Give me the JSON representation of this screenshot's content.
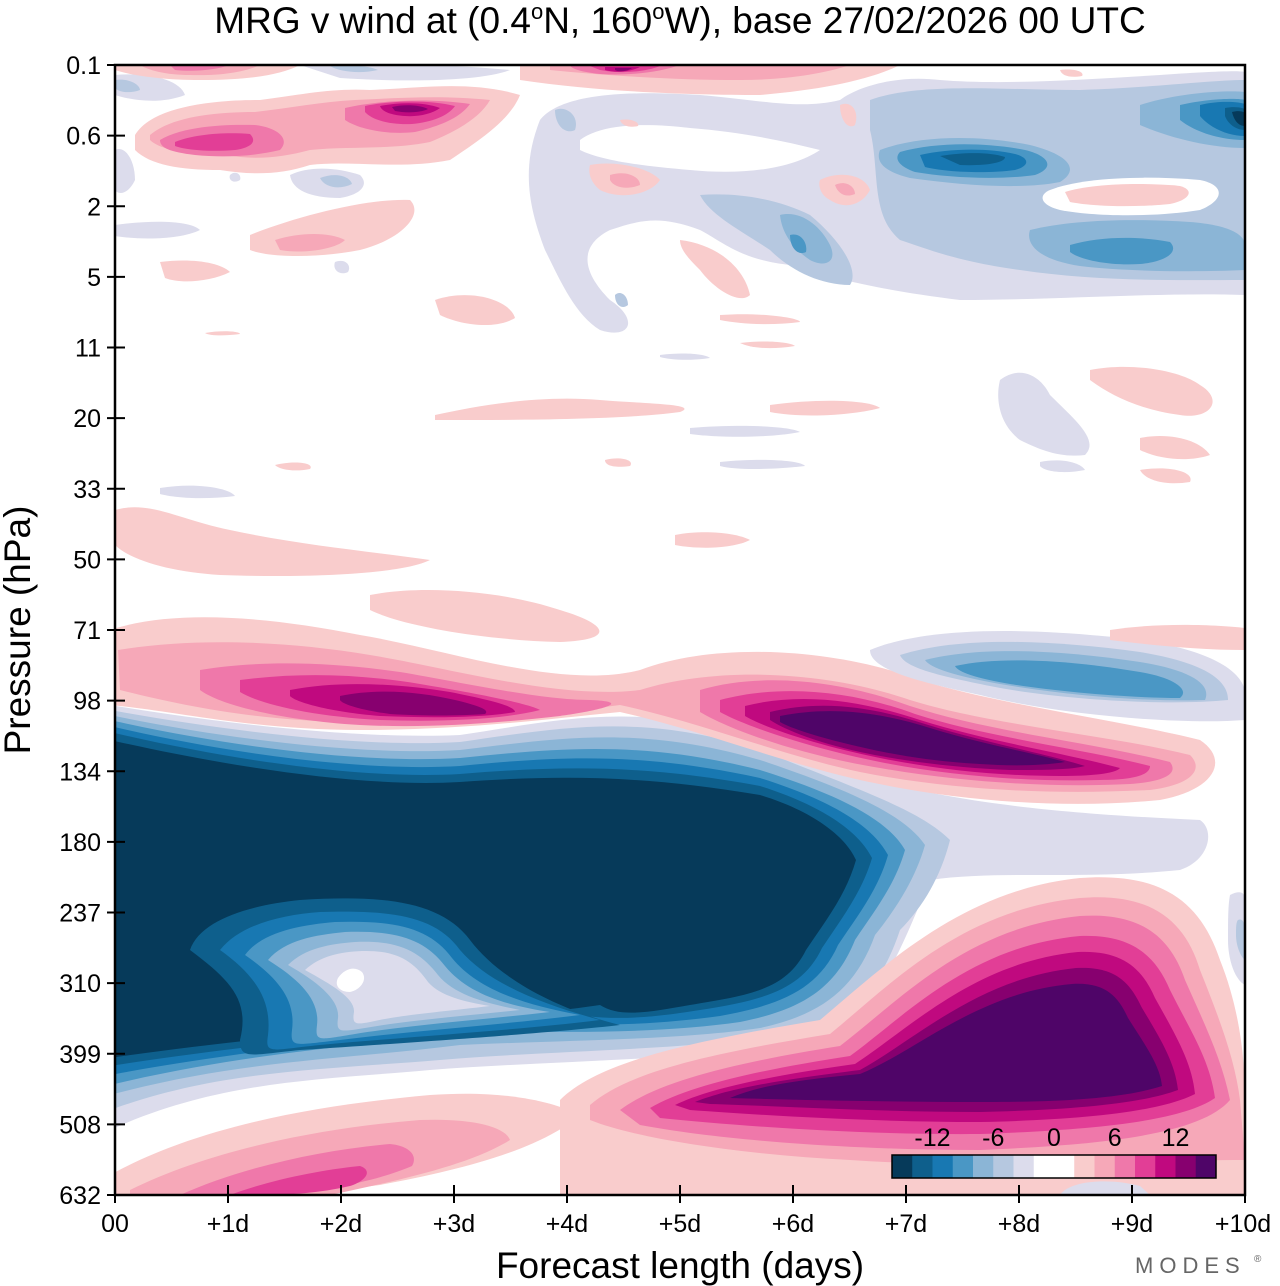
{
  "chart_data": {
    "type": "heatmap",
    "title": "MRG v wind at (0.4°N, 160°W),  base 27/02/2026  00 UTC",
    "title_parts": {
      "prefix": "MRG v wind at (0.4",
      "deg": "o",
      "mid": "N, 160",
      "suffix": "W),  base 27/02/2026  00 UTC"
    },
    "xlabel": "Forecast length (days)",
    "ylabel": "Pressure (hPa)",
    "x_tick_labels": [
      "00",
      "+1d",
      "+2d",
      "+3d",
      "+4d",
      "+5d",
      "+6d",
      "+7d",
      "+8d",
      "+9d",
      "+10d"
    ],
    "xlim_days": [
      0,
      10
    ],
    "y_tick_labels": [
      "0.1",
      "0.6",
      "2",
      "5",
      "11",
      "20",
      "33",
      "50",
      "71",
      "98",
      "134",
      "180",
      "237",
      "310",
      "399",
      "508",
      "632"
    ],
    "y_levels_hpa": [
      0.1,
      0.6,
      2,
      5,
      11,
      20,
      33,
      50,
      71,
      98,
      134,
      180,
      237,
      310,
      399,
      508,
      632
    ],
    "colorbar": {
      "tick_labels": [
        "-12",
        "-6",
        "0",
        "6",
        "12"
      ],
      "tick_values": [
        -12,
        -6,
        0,
        6,
        12
      ],
      "range": [
        -16,
        16
      ],
      "colors": [
        "#063a5a",
        "#0e5f8c",
        "#1878b2",
        "#4a97c5",
        "#8bb5d6",
        "#b6c8e0",
        "#dcdcec",
        "#ffffff",
        "#ffffff",
        "#f9cccc",
        "#f6a8b8",
        "#ef78aa",
        "#e23e96",
        "#c0097f",
        "#87006f",
        "#4f0568"
      ]
    },
    "features": [
      {
        "name": "strong southerly (negative) lobe, lower stratosphere / upper troposphere",
        "sign": "negative",
        "peak": -16,
        "x_days": [
          0,
          7.5
        ],
        "pressure_hpa": [
          130,
          400
        ]
      },
      {
        "name": "positive core",
        "sign": "positive",
        "peak": 16,
        "x_days": [
          5.6,
          9.2
        ],
        "pressure_hpa": [
          90,
          140
        ]
      },
      {
        "name": "positive core",
        "sign": "positive",
        "peak": 16,
        "x_days": [
          5.3,
          9.9
        ],
        "pressure_hpa": [
          330,
          470
        ]
      },
      {
        "name": "positive band",
        "sign": "positive",
        "peak": 13,
        "x_days": [
          1.5,
          3.8
        ],
        "pressure_hpa": [
          80,
          110
        ]
      },
      {
        "name": "negative band",
        "sign": "negative",
        "peak": -9,
        "x_days": [
          6.8,
          9.8
        ],
        "pressure_hpa": [
          75,
          100
        ]
      },
      {
        "name": "upper-level negative",
        "sign": "negative",
        "peak": -14,
        "x_days": [
          6.5,
          10
        ],
        "pressure_hpa": [
          0.1,
          5
        ]
      },
      {
        "name": "upper-level positive",
        "sign": "positive",
        "peak": 14,
        "x_days": [
          0.3,
          3.6
        ],
        "pressure_hpa": [
          0.1,
          1.2
        ]
      }
    ],
    "branding": "MODES"
  }
}
